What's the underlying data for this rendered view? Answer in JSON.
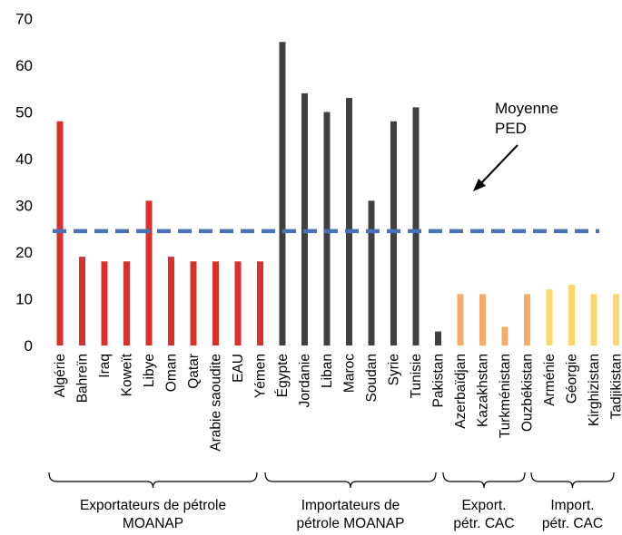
{
  "chart_data": {
    "type": "bar",
    "title": "",
    "xlabel": "",
    "ylabel": "",
    "ylim": [
      0,
      70
    ],
    "yticks": [
      0,
      10,
      20,
      30,
      40,
      50,
      60,
      70
    ],
    "grid": false,
    "legend": "none",
    "categories": [
      "Algérie",
      "Bahreïn",
      "Iraq",
      "Koweït",
      "Libye",
      "Oman",
      "Qatar",
      "Arabie saoudite",
      "EAU",
      "Yémen",
      "Égypte",
      "Jordanie",
      "Liban",
      "Maroc",
      "Soudan",
      "Syrie",
      "Tunisie",
      "Pakistan",
      "Azerbaïdjan",
      "Kazakhstan",
      "Turkménistan",
      "Ouzbékistan",
      "Arménie",
      "Géorgie",
      "Kirghizistan",
      "Tadjikistan"
    ],
    "values": [
      48,
      19,
      18,
      18,
      31,
      19,
      18,
      18,
      18,
      18,
      65,
      54,
      50,
      53,
      31,
      48,
      51,
      3,
      11,
      11,
      4,
      11,
      12,
      13,
      11,
      11
    ],
    "groups": [
      {
        "label_line1": "Exportateurs de pétrole",
        "label_line2": "MOANAP",
        "start": 0,
        "end": 9,
        "color": "#d9302b"
      },
      {
        "label_line1": "Importateurs de",
        "label_line2": "pétrole MOANAP",
        "start": 10,
        "end": 17,
        "color": "#404040"
      },
      {
        "label_line1": "Export.",
        "label_line2": "pétr. CAC",
        "start": 18,
        "end": 21,
        "color": "#f6ac66"
      },
      {
        "label_line1": "Import.",
        "label_line2": "pétr. CAC",
        "start": 22,
        "end": 25,
        "color": "#fbd86b"
      }
    ],
    "reference_line": {
      "value": 24.5,
      "color": "#4a72b8",
      "style": "dashed"
    },
    "annotation": {
      "line1": "Moyenne",
      "line2": "PED"
    }
  }
}
